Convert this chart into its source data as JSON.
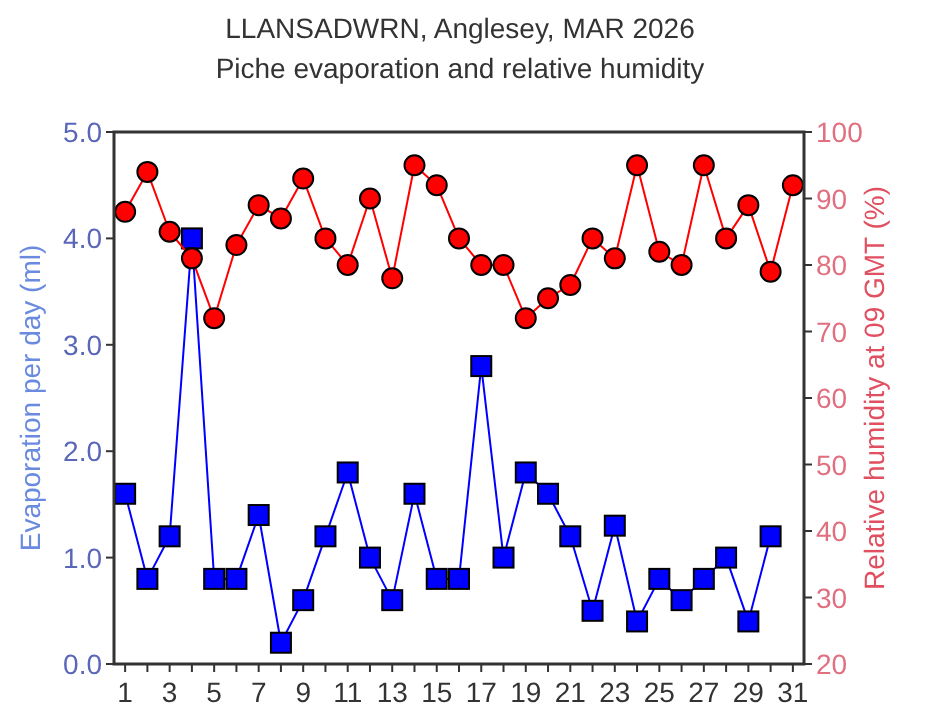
{
  "chart_data": {
    "type": "line",
    "title": "LLANSADWRN, Anglesey, MAR 2026",
    "subtitle": "Piche evaporation and relative humidity",
    "ylabel": "Evaporation per day (ml)",
    "y2label": "Relative humidity at 09 GMT (%)",
    "x": [
      1,
      2,
      3,
      4,
      5,
      6,
      7,
      8,
      9,
      10,
      11,
      12,
      13,
      14,
      15,
      16,
      17,
      18,
      19,
      20,
      21,
      22,
      23,
      24,
      25,
      26,
      27,
      28,
      29,
      30,
      31
    ],
    "xlim": [
      0.5,
      31.5
    ],
    "xticks": [
      1,
      {
        "value": 2,
        "label": null
      },
      3,
      {
        "value": 4,
        "label": null
      },
      5,
      {
        "value": 6,
        "label": null
      },
      7,
      {
        "value": 8,
        "label": null
      },
      9,
      {
        "value": 10,
        "label": null
      },
      11,
      {
        "value": 12,
        "label": null
      },
      13,
      {
        "value": 14,
        "label": null
      },
      15,
      {
        "value": 16,
        "label": null
      },
      17,
      {
        "value": 18,
        "label": null
      },
      19,
      {
        "value": 20,
        "label": null
      },
      21,
      {
        "value": 22,
        "label": null
      },
      23,
      {
        "value": 24,
        "label": null
      },
      25,
      {
        "value": 26,
        "label": null
      },
      27,
      {
        "value": 28,
        "label": null
      },
      29,
      {
        "value": 30,
        "label": null
      },
      31
    ],
    "ylim": [
      0,
      5
    ],
    "yticks": [
      {
        "value": 0,
        "label": "0.0"
      },
      {
        "value": 1,
        "label": "1.0"
      },
      {
        "value": 2,
        "label": "2.0"
      },
      {
        "value": 3,
        "label": "3.0"
      },
      {
        "value": 4,
        "label": "4.0"
      },
      {
        "value": 5,
        "label": "5.0"
      }
    ],
    "y2lim": [
      20,
      100
    ],
    "y2ticks": [
      20,
      30,
      40,
      50,
      60,
      70,
      80,
      90,
      100
    ],
    "grid": false,
    "series": [
      {
        "color": "#0000ff",
        "marker": "square",
        "values": [
          1.6,
          0.8,
          1.2,
          4.0,
          0.8,
          0.8,
          1.4,
          0.2,
          0.6,
          1.2,
          1.8,
          1.0,
          0.6,
          1.6,
          0.8,
          0.8,
          2.8,
          1.0,
          1.8,
          1.6,
          1.2,
          0.5,
          1.3,
          0.4,
          0.8,
          0.6,
          0.8,
          1.0,
          0.4,
          1.2,
          null
        ]
      },
      {
        "color": "#ff0000",
        "marker": "circle",
        "axis": "y2",
        "values": [
          88,
          94,
          85,
          81,
          72,
          83,
          89,
          87,
          93,
          84,
          80,
          90,
          78,
          95,
          92,
          84,
          80,
          80,
          72,
          75,
          77,
          84,
          81,
          95,
          82,
          80,
          95,
          84,
          89,
          79,
          92
        ]
      }
    ]
  }
}
